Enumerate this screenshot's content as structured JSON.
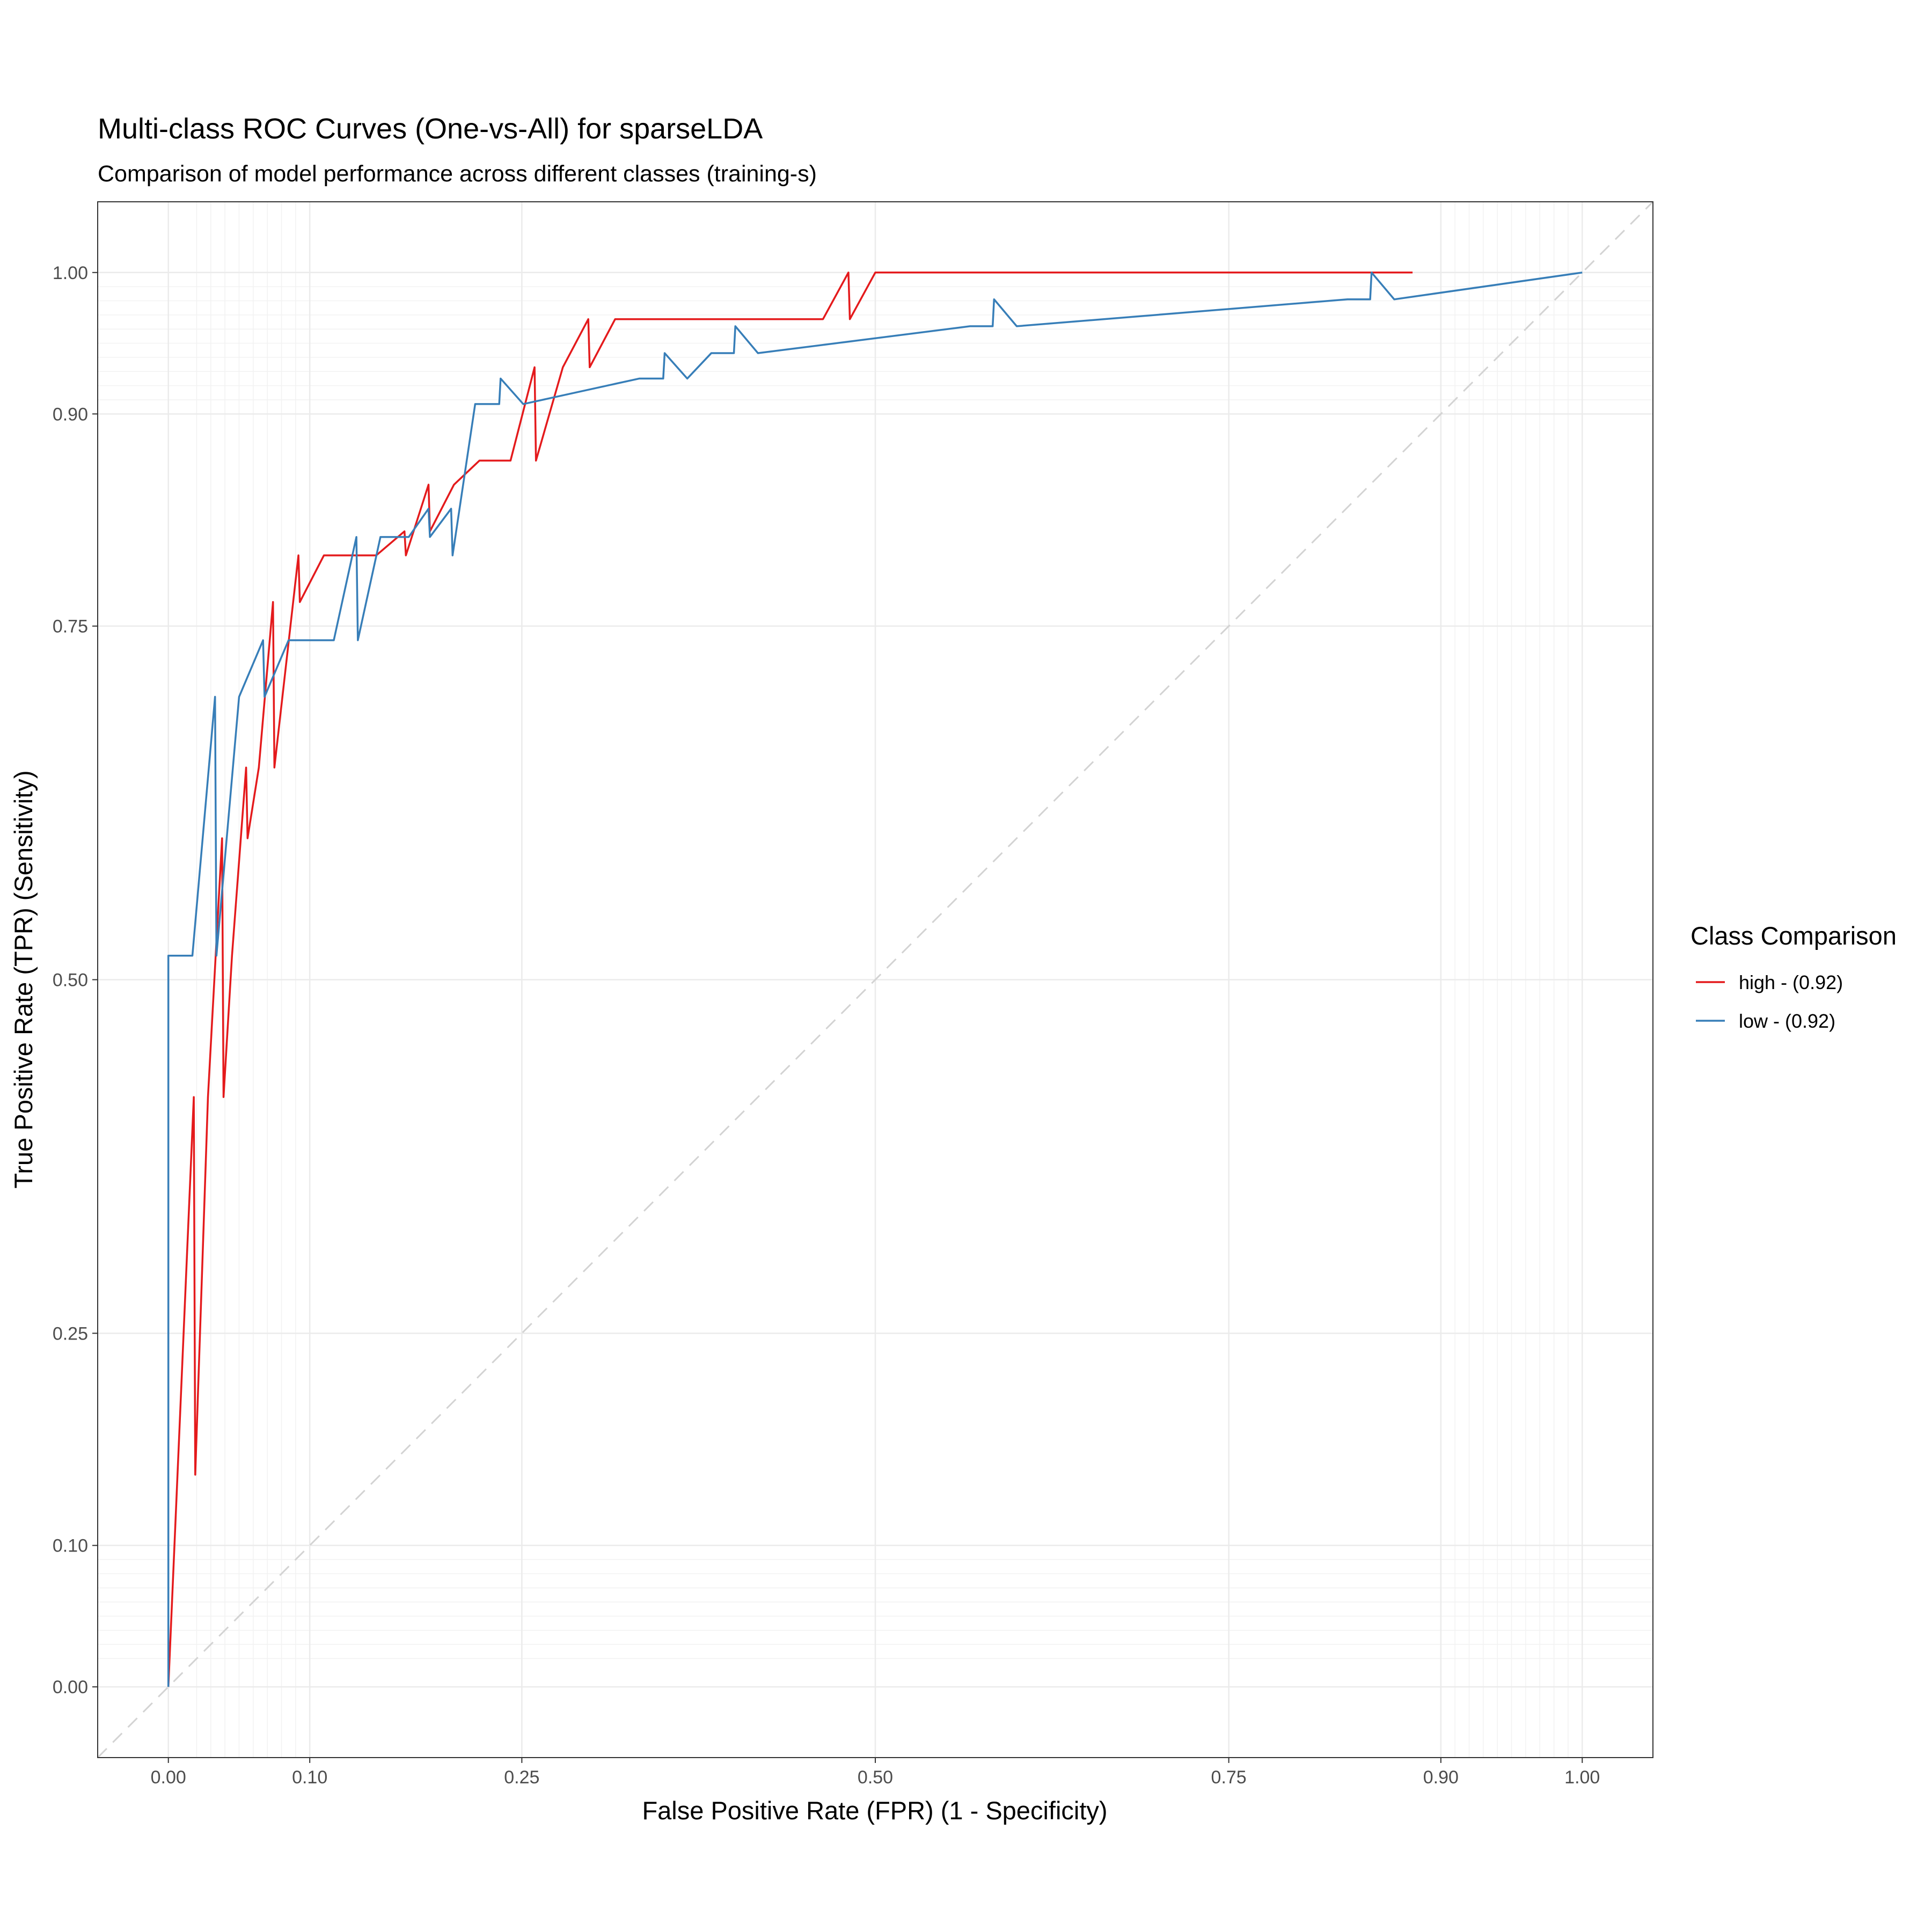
{
  "chart_data": {
    "type": "line",
    "title": "Multi-class ROC Curves (One-vs-All) for sparseLDA",
    "subtitle": "Comparison of model performance across different classes (training-s)",
    "xlabel": "False Positive Rate (FPR) (1 - Specificity)",
    "ylabel": "True Positive Rate (TPR) (Sensitivity)",
    "x_ticks": [
      0.0,
      0.1,
      0.25,
      0.5,
      0.75,
      0.9,
      1.0
    ],
    "y_ticks": [
      0.0,
      0.1,
      0.25,
      0.5,
      0.75,
      0.9,
      1.0
    ],
    "x_tick_labels": [
      "0.00",
      "0.10",
      "0.25",
      "0.50",
      "0.75",
      "0.90",
      "1.00"
    ],
    "y_tick_labels": [
      "0.00",
      "0.10",
      "0.25",
      "0.50",
      "0.75",
      "0.90",
      "1.00"
    ],
    "xlim": [
      -0.05,
      1.05
    ],
    "ylim": [
      -0.05,
      1.05
    ],
    "grid": true,
    "diagonal_reference": true,
    "legend": {
      "title": "Class Comparison",
      "position": "right"
    },
    "series": [
      {
        "name": "high - (0.92)",
        "color": "#e41a1c",
        "x": [
          0.0,
          0.018,
          0.019,
          0.028,
          0.038,
          0.039,
          0.045,
          0.055,
          0.056,
          0.064,
          0.074,
          0.075,
          0.092,
          0.093,
          0.11,
          0.147,
          0.167,
          0.168,
          0.184,
          0.185,
          0.202,
          0.22,
          0.242,
          0.259,
          0.26,
          0.279,
          0.297,
          0.298,
          0.316,
          0.463,
          0.481,
          0.482,
          0.5,
          0.88
        ],
        "y": [
          0.0,
          0.417,
          0.15,
          0.417,
          0.6,
          0.417,
          0.517,
          0.65,
          0.6,
          0.65,
          0.767,
          0.65,
          0.8,
          0.767,
          0.8,
          0.8,
          0.817,
          0.8,
          0.85,
          0.817,
          0.85,
          0.867,
          0.867,
          0.933,
          0.867,
          0.933,
          0.967,
          0.933,
          0.967,
          0.967,
          1.0,
          0.967,
          1.0,
          1.0
        ]
      },
      {
        "name": "low - (0.92)",
        "color": "#377eb8",
        "x": [
          0.0,
          0.0,
          0.017,
          0.033,
          0.034,
          0.05,
          0.067,
          0.068,
          0.085,
          0.117,
          0.133,
          0.134,
          0.15,
          0.17,
          0.184,
          0.185,
          0.2,
          0.201,
          0.217,
          0.234,
          0.235,
          0.251,
          0.333,
          0.35,
          0.351,
          0.367,
          0.384,
          0.4,
          0.401,
          0.417,
          0.567,
          0.583,
          0.584,
          0.6,
          0.834,
          0.85,
          0.851,
          0.867,
          1.0
        ],
        "y": [
          0.0,
          0.517,
          0.517,
          0.7,
          0.517,
          0.7,
          0.74,
          0.7,
          0.74,
          0.74,
          0.813,
          0.74,
          0.813,
          0.813,
          0.833,
          0.813,
          0.833,
          0.8,
          0.907,
          0.907,
          0.925,
          0.907,
          0.925,
          0.925,
          0.943,
          0.925,
          0.943,
          0.943,
          0.962,
          0.943,
          0.962,
          0.962,
          0.981,
          0.962,
          0.981,
          0.981,
          1.0,
          0.981,
          1.0
        ]
      }
    ]
  }
}
